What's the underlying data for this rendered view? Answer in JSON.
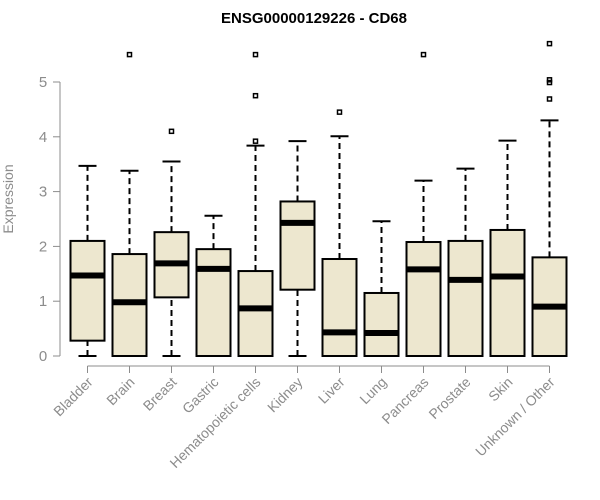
{
  "chart_data": {
    "type": "box",
    "title": "ENSG00000129226 - CD68",
    "xlabel": "",
    "ylabel": "Expression",
    "ylim": [
      0,
      5.8
    ],
    "yticks": [
      "0",
      "1",
      "2",
      "3",
      "4",
      "5"
    ],
    "box_fill": "#ede7cf",
    "categories": [
      "Bladder",
      "Brain",
      "Breast",
      "Gastric",
      "Hematopoietic cells",
      "Kidney",
      "Liver",
      "Lung",
      "Pancreas",
      "Prostate",
      "Skin",
      "Unknown / Other"
    ],
    "series": [
      {
        "name": "Bladder",
        "whisker_low": 0.0,
        "q1": 0.28,
        "median": 1.47,
        "q3": 2.1,
        "whisker_high": 3.47,
        "outliers": []
      },
      {
        "name": "Brain",
        "whisker_low": 0.0,
        "q1": 0.0,
        "median": 0.98,
        "q3": 1.86,
        "whisker_high": 3.38,
        "outliers": [
          5.5
        ]
      },
      {
        "name": "Breast",
        "whisker_low": 0.0,
        "q1": 1.07,
        "median": 1.69,
        "q3": 2.26,
        "whisker_high": 3.55,
        "outliers": [
          4.1
        ]
      },
      {
        "name": "Gastric",
        "whisker_low": 0.0,
        "q1": 0.0,
        "median": 1.59,
        "q3": 1.95,
        "whisker_high": 2.56,
        "outliers": []
      },
      {
        "name": "Hematopoietic cells",
        "whisker_low": 0.0,
        "q1": 0.0,
        "median": 0.87,
        "q3": 1.55,
        "whisker_high": 3.84,
        "outliers": [
          3.92,
          4.75,
          5.5
        ]
      },
      {
        "name": "Kidney",
        "whisker_low": 0.0,
        "q1": 1.21,
        "median": 2.43,
        "q3": 2.82,
        "whisker_high": 3.92,
        "outliers": []
      },
      {
        "name": "Liver",
        "whisker_low": 0.0,
        "q1": 0.0,
        "median": 0.43,
        "q3": 1.77,
        "whisker_high": 4.01,
        "outliers": [
          4.45
        ]
      },
      {
        "name": "Lung",
        "whisker_low": 0.0,
        "q1": 0.0,
        "median": 0.42,
        "q3": 1.15,
        "whisker_high": 2.46,
        "outliers": []
      },
      {
        "name": "Pancreas",
        "whisker_low": 0.0,
        "q1": 0.0,
        "median": 1.58,
        "q3": 2.08,
        "whisker_high": 3.2,
        "outliers": [
          5.5
        ]
      },
      {
        "name": "Prostate",
        "whisker_low": 0.0,
        "q1": 0.0,
        "median": 1.39,
        "q3": 2.1,
        "whisker_high": 3.42,
        "outliers": []
      },
      {
        "name": "Skin",
        "whisker_low": 0.0,
        "q1": 0.0,
        "median": 1.45,
        "q3": 2.3,
        "whisker_high": 3.93,
        "outliers": []
      },
      {
        "name": "Unknown / Other",
        "whisker_low": 0.0,
        "q1": 0.0,
        "median": 0.9,
        "q3": 1.8,
        "whisker_high": 4.3,
        "outliers": [
          4.69,
          4.99,
          5.04,
          5.7
        ]
      }
    ]
  }
}
